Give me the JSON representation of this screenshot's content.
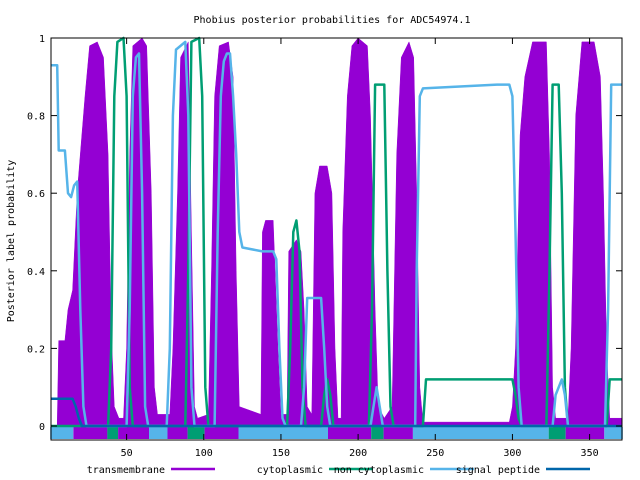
{
  "chart_data": {
    "type": "line",
    "title": "Phobius posterior probabilities for ADC54974.1",
    "xlabel": "",
    "ylabel": "Posterior label probability",
    "xlim": [
      1,
      371
    ],
    "ylim": [
      0,
      1
    ],
    "x_ticks": [
      50,
      100,
      150,
      200,
      250,
      300,
      350
    ],
    "y_ticks": [
      0,
      0.2,
      0.4,
      0.6,
      0.8,
      1
    ],
    "y_tick_labels": [
      "0",
      "0.2",
      "0.4",
      "0.6",
      "0.8",
      "1"
    ],
    "grid": false,
    "legend_position": "bottom",
    "series": [
      {
        "name": "transmembrane",
        "color": "#9400d3",
        "style": "filled",
        "points": [
          [
            1,
            0
          ],
          [
            5,
            0
          ],
          [
            6,
            0.22
          ],
          [
            10,
            0.22
          ],
          [
            12,
            0.3
          ],
          [
            15,
            0.35
          ],
          [
            18,
            0.6
          ],
          [
            20,
            0.7
          ],
          [
            23,
            0.85
          ],
          [
            26,
            0.98
          ],
          [
            31,
            0.99
          ],
          [
            35,
            0.95
          ],
          [
            38,
            0.7
          ],
          [
            40,
            0.25
          ],
          [
            42,
            0.05
          ],
          [
            45,
            0.02
          ],
          [
            48,
            0.02
          ],
          [
            50,
            0.2
          ],
          [
            52,
            0.7
          ],
          [
            54,
            0.98
          ],
          [
            60,
            1.0
          ],
          [
            63,
            0.98
          ],
          [
            66,
            0.6
          ],
          [
            68,
            0.1
          ],
          [
            70,
            0.03
          ],
          [
            78,
            0.03
          ],
          [
            80,
            0.2
          ],
          [
            83,
            0.6
          ],
          [
            85,
            0.95
          ],
          [
            90,
            0.99
          ],
          [
            92,
            0.5
          ],
          [
            94,
            0.05
          ],
          [
            96,
            0.02
          ],
          [
            103,
            0.03
          ],
          [
            105,
            0.4
          ],
          [
            107,
            0.85
          ],
          [
            110,
            0.98
          ],
          [
            116,
            0.99
          ],
          [
            119,
            0.9
          ],
          [
            121,
            0.4
          ],
          [
            123,
            0.05
          ],
          [
            137,
            0.03
          ],
          [
            138,
            0.5
          ],
          [
            140,
            0.53
          ],
          [
            145,
            0.53
          ],
          [
            148,
            0.2
          ],
          [
            150,
            0.03
          ],
          [
            154,
            0.03
          ],
          [
            155,
            0.45
          ],
          [
            160,
            0.48
          ],
          [
            163,
            0.45
          ],
          [
            165,
            0.3
          ],
          [
            167,
            0.05
          ],
          [
            170,
            0.03
          ],
          [
            172,
            0.6
          ],
          [
            175,
            0.67
          ],
          [
            180,
            0.67
          ],
          [
            183,
            0.6
          ],
          [
            185,
            0.2
          ],
          [
            187,
            0.02
          ],
          [
            189,
            0.02
          ],
          [
            190,
            0.5
          ],
          [
            193,
            0.85
          ],
          [
            196,
            0.98
          ],
          [
            200,
            1.0
          ],
          [
            206,
            0.98
          ],
          [
            208,
            0.8
          ],
          [
            211,
            0.3
          ],
          [
            213,
            0.05
          ],
          [
            217,
            0.02
          ],
          [
            222,
            0.05
          ],
          [
            225,
            0.7
          ],
          [
            228,
            0.95
          ],
          [
            233,
            0.99
          ],
          [
            236,
            0.95
          ],
          [
            238,
            0.6
          ],
          [
            240,
            0.1
          ],
          [
            242,
            0.01
          ],
          [
            298,
            0.01
          ],
          [
            300,
            0.05
          ],
          [
            302,
            0.2
          ],
          [
            305,
            0.75
          ],
          [
            308,
            0.9
          ],
          [
            313,
            0.99
          ],
          [
            322,
            0.99
          ],
          [
            324,
            0.7
          ],
          [
            326,
            0.1
          ],
          [
            328,
            0.02
          ],
          [
            336,
            0.02
          ],
          [
            338,
            0.2
          ],
          [
            341,
            0.8
          ],
          [
            345,
            0.99
          ],
          [
            353,
            0.99
          ],
          [
            357,
            0.9
          ],
          [
            359,
            0.6
          ],
          [
            361,
            0.2
          ],
          [
            363,
            0.02
          ],
          [
            371,
            0.02
          ]
        ]
      },
      {
        "name": "cytoplasmic",
        "color": "#ff0000",
        "style": "hidden",
        "points": []
      },
      {
        "name": "non cytoplasmic",
        "color": "#009e73",
        "style": "line",
        "points": [
          [
            1,
            0
          ],
          [
            38,
            0
          ],
          [
            40,
            0.2
          ],
          [
            42,
            0.85
          ],
          [
            44,
            0.99
          ],
          [
            48,
            1.0
          ],
          [
            50,
            0.85
          ],
          [
            52,
            0.1
          ],
          [
            54,
            0
          ],
          [
            88,
            0
          ],
          [
            90,
            0.4
          ],
          [
            92,
            0.99
          ],
          [
            97,
            1.0
          ],
          [
            99,
            0.85
          ],
          [
            101,
            0.1
          ],
          [
            103,
            0
          ],
          [
            154,
            0
          ],
          [
            156,
            0.2
          ],
          [
            158,
            0.5
          ],
          [
            160,
            0.53
          ],
          [
            162,
            0.45
          ],
          [
            164,
            0.1
          ],
          [
            166,
            0
          ],
          [
            176,
            0
          ],
          [
            178,
            0.08
          ],
          [
            180,
            0.12
          ],
          [
            182,
            0.08
          ],
          [
            184,
            0
          ],
          [
            207,
            0
          ],
          [
            209,
            0.3
          ],
          [
            211,
            0.88
          ],
          [
            217,
            0.88
          ],
          [
            219,
            0.4
          ],
          [
            221,
            0.05
          ],
          [
            223,
            0
          ],
          [
            242,
            0
          ],
          [
            244,
            0.12
          ],
          [
            250,
            0.12
          ],
          [
            300,
            0.12
          ],
          [
            302,
            0.08
          ],
          [
            304,
            0.02
          ],
          [
            306,
            0
          ],
          [
            322,
            0
          ],
          [
            324,
            0.4
          ],
          [
            326,
            0.88
          ],
          [
            330,
            0.88
          ],
          [
            332,
            0.6
          ],
          [
            334,
            0.1
          ],
          [
            336,
            0
          ],
          [
            361,
            0
          ],
          [
            363,
            0.12
          ],
          [
            371,
            0.12
          ]
        ]
      },
      {
        "name": "signal peptide",
        "color": "#56b4e9",
        "style": "line",
        "points": [
          [
            1,
            0.93
          ],
          [
            5,
            0.93
          ],
          [
            6,
            0.71
          ],
          [
            10,
            0.71
          ],
          [
            12,
            0.6
          ],
          [
            14,
            0.59
          ],
          [
            16,
            0.62
          ],
          [
            18,
            0.63
          ],
          [
            20,
            0.3
          ],
          [
            22,
            0.05
          ],
          [
            24,
            0
          ],
          [
            50,
            0
          ],
          [
            52,
            0.3
          ],
          [
            54,
            0.85
          ],
          [
            56,
            0.95
          ],
          [
            58,
            0.96
          ],
          [
            60,
            0.6
          ],
          [
            62,
            0.05
          ],
          [
            64,
            0
          ],
          [
            76,
            0
          ],
          [
            78,
            0.2
          ],
          [
            80,
            0.8
          ],
          [
            82,
            0.97
          ],
          [
            88,
            0.99
          ],
          [
            90,
            0.8
          ],
          [
            92,
            0.1
          ],
          [
            94,
            0
          ],
          [
            107,
            0
          ],
          [
            109,
            0.5
          ],
          [
            111,
            0.85
          ],
          [
            113,
            0.94
          ],
          [
            115,
            0.96
          ],
          [
            117,
            0.96
          ],
          [
            119,
            0.85
          ],
          [
            121,
            0.7
          ],
          [
            123,
            0.5
          ],
          [
            125,
            0.46
          ],
          [
            138,
            0.45
          ],
          [
            145,
            0.45
          ],
          [
            147,
            0.43
          ],
          [
            149,
            0.2
          ],
          [
            151,
            0.02
          ],
          [
            153,
            0
          ],
          [
            163,
            0
          ],
          [
            165,
            0.1
          ],
          [
            167,
            0.33
          ],
          [
            176,
            0.33
          ],
          [
            178,
            0.2
          ],
          [
            180,
            0.05
          ],
          [
            182,
            0
          ],
          [
            208,
            0
          ],
          [
            210,
            0.05
          ],
          [
            212,
            0.1
          ],
          [
            214,
            0.05
          ],
          [
            216,
            0
          ],
          [
            237,
            0
          ],
          [
            238,
            0.4
          ],
          [
            240,
            0.85
          ],
          [
            242,
            0.87
          ],
          [
            290,
            0.88
          ],
          [
            298,
            0.88
          ],
          [
            300,
            0.85
          ],
          [
            302,
            0.5
          ],
          [
            304,
            0.1
          ],
          [
            306,
            0
          ],
          [
            326,
            0
          ],
          [
            328,
            0.08
          ],
          [
            332,
            0.12
          ],
          [
            334,
            0.08
          ],
          [
            336,
            0
          ],
          [
            360,
            0
          ],
          [
            362,
            0.3
          ],
          [
            364,
            0.88
          ],
          [
            371,
            0.88
          ]
        ]
      },
      {
        "name": "signal peptide",
        "color": "#0066aa",
        "style": "line",
        "points": [
          [
            1,
            0.07
          ],
          [
            15,
            0.07
          ],
          [
            17,
            0.05
          ],
          [
            19,
            0.02
          ],
          [
            21,
            0
          ],
          [
            371,
            0
          ]
        ]
      }
    ],
    "topology": [
      {
        "label": "signal peptide",
        "color": "#56b4e9",
        "start": 1,
        "end": 15
      },
      {
        "label": "transmembrane",
        "color": "#9400d3",
        "start": 16,
        "end": 37
      },
      {
        "label": "non cytoplasmic",
        "color": "#009e73",
        "start": 38,
        "end": 44
      },
      {
        "label": "transmembrane",
        "color": "#9400d3",
        "start": 45,
        "end": 64
      },
      {
        "label": "signal peptide",
        "color": "#56b4e9",
        "start": 65,
        "end": 76
      },
      {
        "label": "transmembrane",
        "color": "#9400d3",
        "start": 77,
        "end": 89
      },
      {
        "label": "non cytoplasmic",
        "color": "#009e73",
        "start": 90,
        "end": 100
      },
      {
        "label": "transmembrane",
        "color": "#9400d3",
        "start": 101,
        "end": 122
      },
      {
        "label": "signal peptide",
        "color": "#56b4e9",
        "start": 123,
        "end": 180
      },
      {
        "label": "transmembrane",
        "color": "#9400d3",
        "start": 181,
        "end": 208
      },
      {
        "label": "non cytoplasmic",
        "color": "#009e73",
        "start": 209,
        "end": 216
      },
      {
        "label": "transmembrane",
        "color": "#9400d3",
        "start": 217,
        "end": 235
      },
      {
        "label": "signal peptide",
        "color": "#56b4e9",
        "start": 236,
        "end": 323
      },
      {
        "label": "non cytoplasmic",
        "color": "#009e73",
        "start": 324,
        "end": 334
      },
      {
        "label": "transmembrane",
        "color": "#9400d3",
        "start": 335,
        "end": 359
      },
      {
        "label": "signal peptide",
        "color": "#56b4e9",
        "start": 360,
        "end": 371
      }
    ]
  }
}
